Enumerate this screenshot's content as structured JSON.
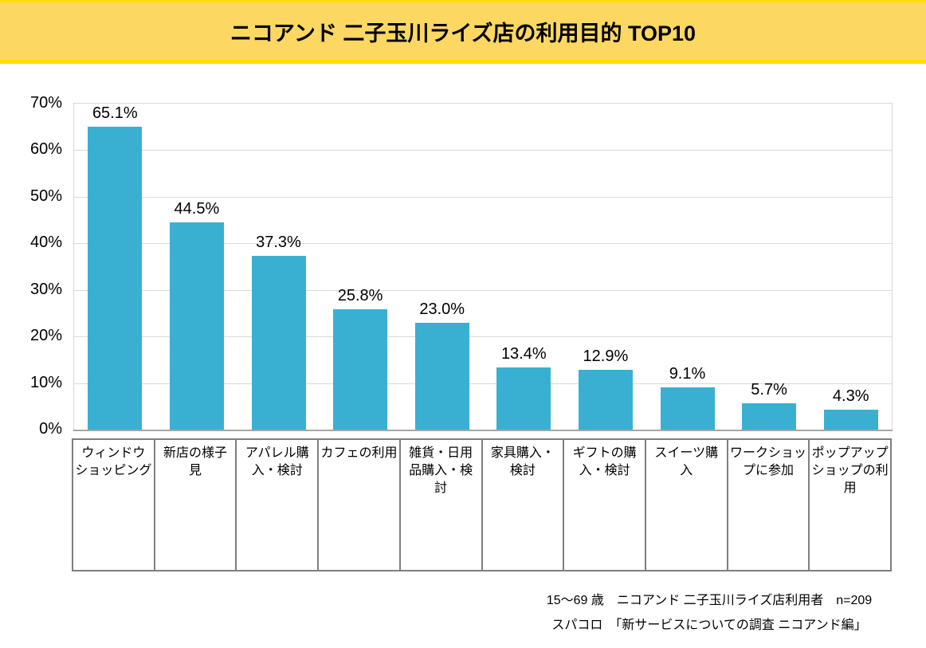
{
  "title": "ニコアンド 二子玉川ライズ店の利用目的 TOP10",
  "colors": {
    "banner_bg": "#FCD862",
    "banner_stripe": "#FFDE00",
    "bar": "#39B0D2",
    "gridline": "#D9D9D9",
    "axis_line": "#A6A6A6",
    "table_border": "#7F7F7F",
    "text": "#000000"
  },
  "chart_data": {
    "type": "bar",
    "title": "ニコアンド 二子玉川ライズ店の利用目的 TOP10",
    "categories": [
      "ウィンドウショッピング",
      "新店の様子見",
      "アパレル購入・検討",
      "カフェの利用",
      "雑貨・日用品購入・検討",
      "家具購入・検討",
      "ギフトの購入・検討",
      "スイーツ購入",
      "ワークショップに参加",
      "ポップアップショップの利用"
    ],
    "categories_wrapped": [
      "ウィンドウ\nショッピング",
      "新店の様子\n見",
      "アパレル購\n入・検討",
      "カフェの利用",
      "雑貨・日用\n品購入・検\n討",
      "家具購入・\n検討",
      "ギフトの購\n入・検討",
      "スイーツ購\n入",
      "ワークショッ\nプに参加",
      "ポップアップ\nショップの利\n用"
    ],
    "values": [
      65.1,
      44.5,
      37.3,
      25.8,
      23.0,
      13.4,
      12.9,
      9.1,
      5.7,
      4.3
    ],
    "value_labels": [
      "65.1%",
      "44.5%",
      "37.3%",
      "25.8%",
      "23.0%",
      "13.4%",
      "12.9%",
      "9.1%",
      "5.7%",
      "4.3%"
    ],
    "xlabel": "",
    "ylabel": "",
    "ylim": [
      0,
      70
    ],
    "ytick_step": 10,
    "ytick_labels": [
      "0%",
      "10%",
      "20%",
      "30%",
      "40%",
      "50%",
      "60%",
      "70%"
    ],
    "grid": true,
    "legend": false
  },
  "footer": {
    "line1": "15～69 歳　ニコアンド 二子玉川ライズ店利用者　n=209",
    "line2": "スパコロ　「新サービスについての調査 ニコアンド編」"
  }
}
